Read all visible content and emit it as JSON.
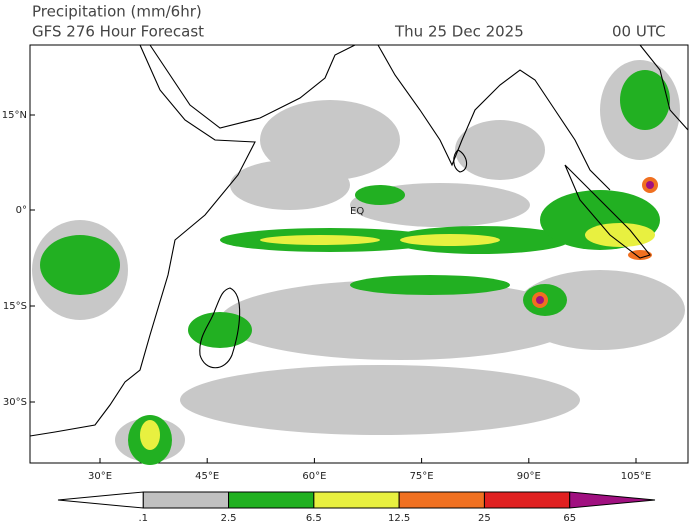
{
  "header": {
    "title": "Precipitation (mm/6hr)",
    "subtitle": "GFS 276 Hour Forecast",
    "date": "Thu 25 Dec 2025",
    "time": "00 UTC"
  },
  "map": {
    "lat_labels": [
      "15°N",
      "0°",
      "15°S",
      "30°S"
    ],
    "lon_labels": [
      "30°E",
      "45°E",
      "60°E",
      "75°E",
      "90°E",
      "105°E"
    ],
    "equator_label": "EQ"
  },
  "colorbar": {
    "labels": [
      ".1",
      "2.5",
      "6.5",
      "12.5",
      "25",
      "65"
    ],
    "colors": [
      "#ffffff",
      "#c0c0c0",
      "#20b020",
      "#e8f040",
      "#f07020",
      "#e02020",
      "#a01080"
    ]
  }
}
